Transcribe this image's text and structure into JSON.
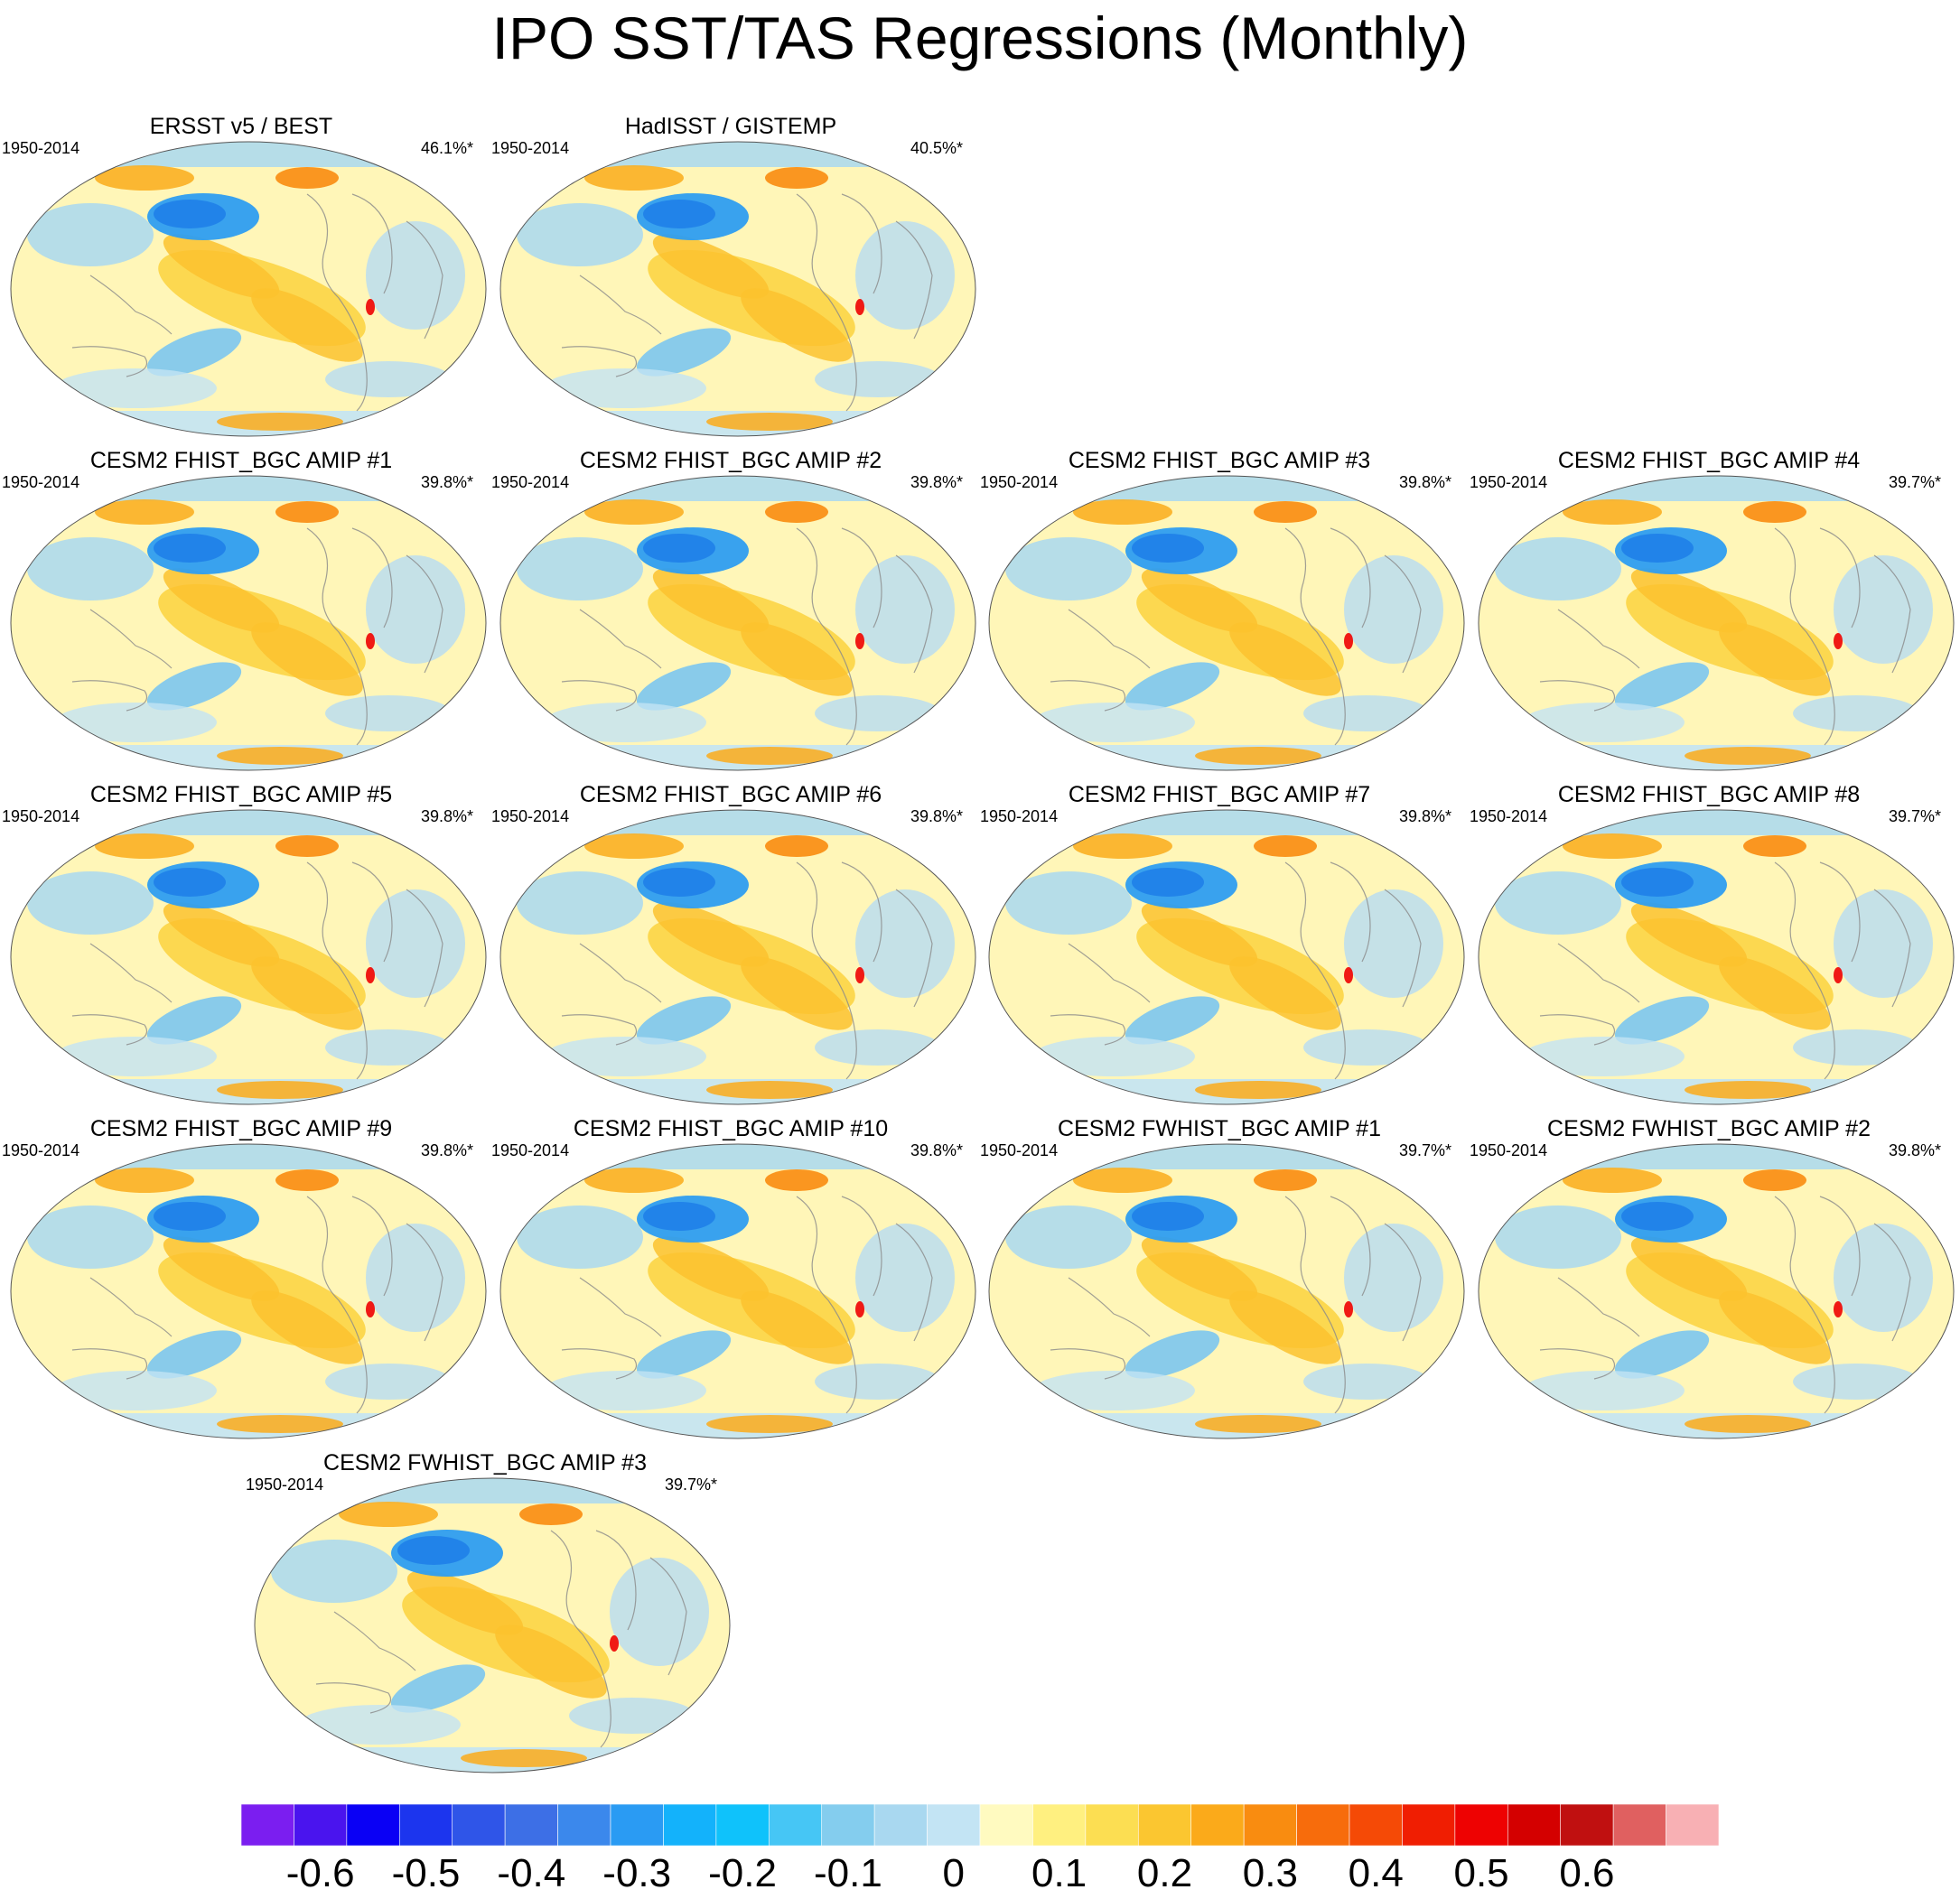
{
  "title": "IPO SST/TAS Regressions (Monthly)",
  "panels": [
    {
      "title": "ERSST v5 / BEST",
      "years": "1950-2014",
      "variance": "46.1%*"
    },
    {
      "title": "HadISST / GISTEMP",
      "years": "1950-2014",
      "variance": "40.5%*"
    },
    {
      "title": "CESM2 FHIST_BGC AMIP #1",
      "years": "1950-2014",
      "variance": "39.8%*"
    },
    {
      "title": "CESM2 FHIST_BGC AMIP #2",
      "years": "1950-2014",
      "variance": "39.8%*"
    },
    {
      "title": "CESM2 FHIST_BGC AMIP #3",
      "years": "1950-2014",
      "variance": "39.8%*"
    },
    {
      "title": "CESM2 FHIST_BGC AMIP #4",
      "years": "1950-2014",
      "variance": "39.7%*"
    },
    {
      "title": "CESM2 FHIST_BGC AMIP #5",
      "years": "1950-2014",
      "variance": "39.8%*"
    },
    {
      "title": "CESM2 FHIST_BGC AMIP #6",
      "years": "1950-2014",
      "variance": "39.8%*"
    },
    {
      "title": "CESM2 FHIST_BGC AMIP #7",
      "years": "1950-2014",
      "variance": "39.8%*"
    },
    {
      "title": "CESM2 FHIST_BGC AMIP #8",
      "years": "1950-2014",
      "variance": "39.7%*"
    },
    {
      "title": "CESM2 FHIST_BGC AMIP #9",
      "years": "1950-2014",
      "variance": "39.8%*"
    },
    {
      "title": "CESM2 FHIST_BGC AMIP #10",
      "years": "1950-2014",
      "variance": "39.8%*"
    },
    {
      "title": "CESM2 FWHIST_BGC AMIP #1",
      "years": "1950-2014",
      "variance": "39.7%*"
    },
    {
      "title": "CESM2 FWHIST_BGC AMIP #2",
      "years": "1950-2014",
      "variance": "39.8%*"
    },
    {
      "title": "CESM2 FWHIST_BGC AMIP #3",
      "years": "1950-2014",
      "variance": "39.7%*"
    }
  ],
  "colorbar": {
    "colors": [
      "#7b1ef0",
      "#4a14ee",
      "#0a00f5",
      "#1c35ee",
      "#2f55e8",
      "#3d6fe6",
      "#3b88ec",
      "#2a9bf3",
      "#13b2fb",
      "#0fc2fb",
      "#46c6f5",
      "#84cdee",
      "#a9d8f0",
      "#c3e4f4",
      "#fffac0",
      "#fff080",
      "#fcde52",
      "#fbc630",
      "#fbaa1a",
      "#f98c10",
      "#f76c0c",
      "#f54a06",
      "#f01e02",
      "#ee0202",
      "#d40000",
      "#c01010",
      "#e06060",
      "#f8b0b4"
    ],
    "labels": [
      "-0.6",
      "-0.5",
      "-0.4",
      "-0.3",
      "-0.2",
      "-0.1",
      "0",
      "0.1",
      "0.2",
      "0.3",
      "0.4",
      "0.5",
      "0.6"
    ]
  }
}
